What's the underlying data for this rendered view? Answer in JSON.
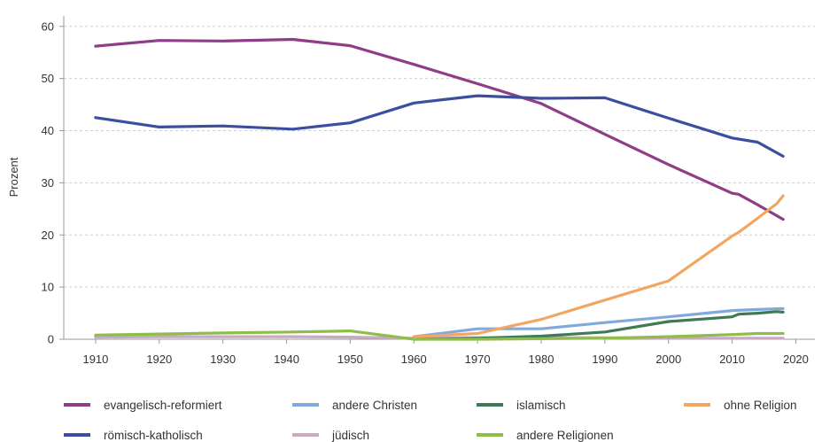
{
  "chart_data": {
    "type": "line",
    "ylabel": "Prozent",
    "xlim": [
      1905,
      2023
    ],
    "ylim": [
      0,
      62
    ],
    "x_ticks": [
      1910,
      1920,
      1930,
      1940,
      1950,
      1960,
      1970,
      1980,
      1990,
      2000,
      2010,
      2020
    ],
    "y_ticks": [
      0,
      10,
      20,
      30,
      40,
      50,
      60
    ],
    "grid": "horizontal",
    "legend": "bottom",
    "series": [
      {
        "name": "evangelisch-reformiert",
        "color": "#8e3d86",
        "x": [
          1910,
          1920,
          1930,
          1941,
          1950,
          1960,
          1970,
          1980,
          1990,
          2000,
          2010,
          2011,
          2014,
          2018
        ],
        "y": [
          56.2,
          57.3,
          57.2,
          57.5,
          56.3,
          52.7,
          49.0,
          45.2,
          39.3,
          33.5,
          28.0,
          27.8,
          25.8,
          23.0
        ]
      },
      {
        "name": "römisch-katholisch",
        "color": "#3a4fa0",
        "x": [
          1910,
          1920,
          1930,
          1941,
          1950,
          1960,
          1970,
          1980,
          1990,
          2000,
          2010,
          2014,
          2018
        ],
        "y": [
          42.5,
          40.7,
          40.9,
          40.3,
          41.5,
          45.3,
          46.7,
          46.2,
          46.3,
          42.4,
          38.6,
          37.8,
          35.1
        ]
      },
      {
        "name": "andere Christen",
        "color": "#80a9dd",
        "x": [
          1960,
          1970,
          1980,
          1990,
          2000,
          2010,
          2014,
          2018
        ],
        "y": [
          0.5,
          2.0,
          2.0,
          3.2,
          4.3,
          5.5,
          5.7,
          5.9
        ]
      },
      {
        "name": "jüdisch",
        "color": "#c9a9c4",
        "x": [
          1910,
          1920,
          1930,
          1941,
          1950,
          1960,
          1970,
          1980,
          1990,
          2000,
          2010,
          2018
        ],
        "y": [
          0.4,
          0.5,
          0.5,
          0.5,
          0.4,
          0.2,
          0.3,
          0.3,
          0.3,
          0.2,
          0.2,
          0.2
        ]
      },
      {
        "name": "islamisch",
        "color": "#3e7a55",
        "x": [
          1960,
          1970,
          1980,
          1990,
          2000,
          2010,
          2011,
          2014,
          2017,
          2018
        ],
        "y": [
          0.0,
          0.2,
          0.6,
          1.4,
          3.4,
          4.3,
          4.8,
          5.0,
          5.3,
          5.2
        ]
      },
      {
        "name": "andere Religionen",
        "color": "#8ebd48",
        "x": [
          1910,
          1920,
          1930,
          1941,
          1950,
          1960,
          1970,
          1980,
          1990,
          2000,
          2010,
          2014,
          2018
        ],
        "y": [
          0.8,
          1.0,
          1.2,
          1.4,
          1.6,
          0.0,
          0.0,
          0.1,
          0.2,
          0.5,
          0.9,
          1.1,
          1.1
        ]
      },
      {
        "name": "ohne Religion",
        "color": "#f1a661",
        "x": [
          1960,
          1970,
          1980,
          1990,
          2000,
          2010,
          2011,
          2014,
          2017,
          2018
        ],
        "y": [
          0.5,
          1.1,
          3.8,
          7.5,
          11.2,
          19.8,
          20.5,
          23.2,
          26.0,
          27.5
        ]
      }
    ]
  }
}
